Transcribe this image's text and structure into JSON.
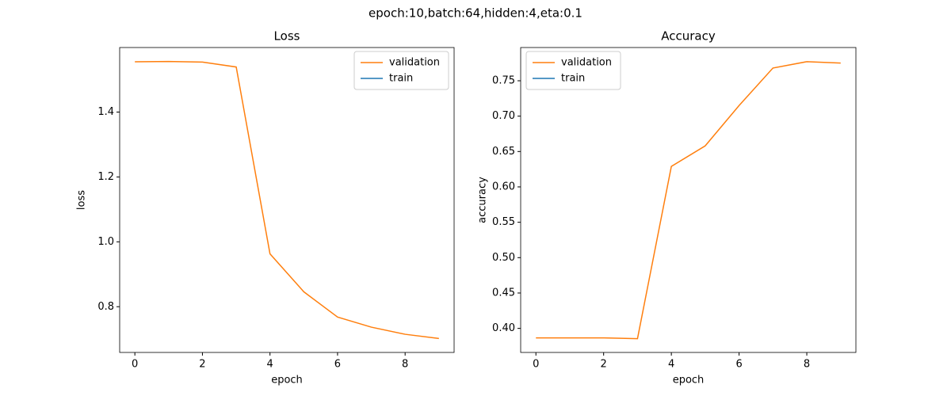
{
  "title": "epoch:10,batch:64,hidden:4,eta:0.1",
  "chart_data": [
    {
      "type": "line",
      "title": "Loss",
      "xlabel": "epoch",
      "ylabel": "loss",
      "x": [
        0,
        1,
        2,
        3,
        4,
        5,
        6,
        7,
        8,
        9
      ],
      "series": [
        {
          "name": "validation",
          "color": "#ff7f0e",
          "values": [
            1.555,
            1.556,
            1.554,
            1.539,
            0.963,
            0.846,
            0.768,
            0.737,
            0.715,
            0.702
          ]
        },
        {
          "name": "train",
          "color": "#1f77b4",
          "values": [
            null,
            null,
            null,
            null,
            null,
            null,
            null,
            null,
            null,
            null
          ]
        }
      ],
      "xlim": [
        -0.45,
        9.45
      ],
      "xticks": [
        0,
        2,
        4,
        6,
        8
      ],
      "ylim": [
        0.659,
        1.599
      ],
      "yticks": [
        0.8,
        {
          "value": 1,
          "label": "1.0"
        },
        1.2,
        1.4
      ],
      "legend": "upper right"
    },
    {
      "type": "line",
      "title": "Accuracy",
      "xlabel": "epoch",
      "ylabel": "accuracy",
      "x": [
        0,
        1,
        2,
        3,
        4,
        5,
        6,
        7,
        8,
        9
      ],
      "series": [
        {
          "name": "validation",
          "color": "#ff7f0e",
          "values": [
            0.3866,
            0.3866,
            0.3866,
            0.3855,
            0.629,
            0.658,
            0.715,
            0.768,
            0.777,
            0.775
          ]
        },
        {
          "name": "train",
          "color": "#1f77b4",
          "values": [
            null,
            null,
            null,
            null,
            null,
            null,
            null,
            null,
            null,
            null
          ]
        }
      ],
      "xlim": [
        -0.45,
        9.45
      ],
      "xticks": [
        0,
        2,
        4,
        6,
        8
      ],
      "ylim": [
        0.366,
        0.797
      ],
      "yticks": [
        {
          "value": 0.4,
          "label": "0.40"
        },
        0.45,
        {
          "value": 0.5,
          "label": "0.50"
        },
        0.55,
        {
          "value": 0.6,
          "label": "0.60"
        },
        0.65,
        {
          "value": 0.7,
          "label": "0.70"
        },
        0.75
      ],
      "legend": "upper left"
    }
  ]
}
